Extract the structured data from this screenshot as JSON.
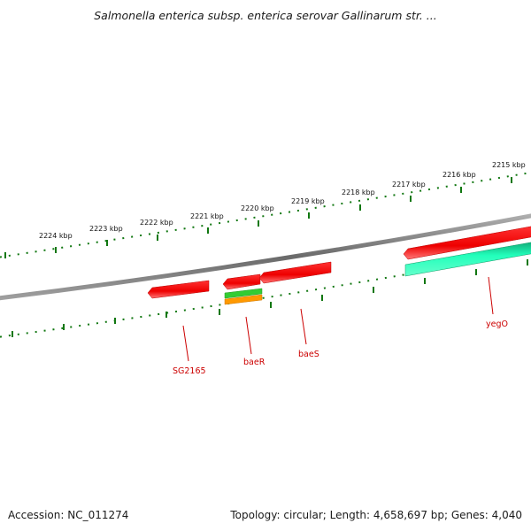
{
  "title": "Salmonella enterica subsp. enterica serovar Gallinarum str. ...",
  "accession": "Accession: NC_011274",
  "summary": "Topology: circular; Length: 4,658,697 bp; Genes: 4,040",
  "scale_labels": [
    "2224 kbp",
    "2223 kbp",
    "2222 kbp",
    "2221 kbp",
    "2220 kbp",
    "2219 kbp",
    "2218 kbp",
    "2217 kbp",
    "2216 kbp",
    "2215 kbp"
  ],
  "genes": [
    {
      "name": "SG2165",
      "strand": "reverse",
      "color": "#ee1111"
    },
    {
      "name": "baeR",
      "strand": "reverse",
      "color": "#ee1111"
    },
    {
      "name": "baeS",
      "strand": "reverse",
      "color": "#ee1111"
    },
    {
      "name": "yegO",
      "strand": "reverse",
      "color": "#ee1111"
    }
  ],
  "colors": {
    "backbone": "#808080",
    "ticks": "#117711",
    "gene_red": "#ee1111",
    "feature_green": "#33cc33",
    "feature_orange": "#ff9900",
    "feature_cyan": "#22ddaa",
    "label_red": "#cc0000"
  }
}
